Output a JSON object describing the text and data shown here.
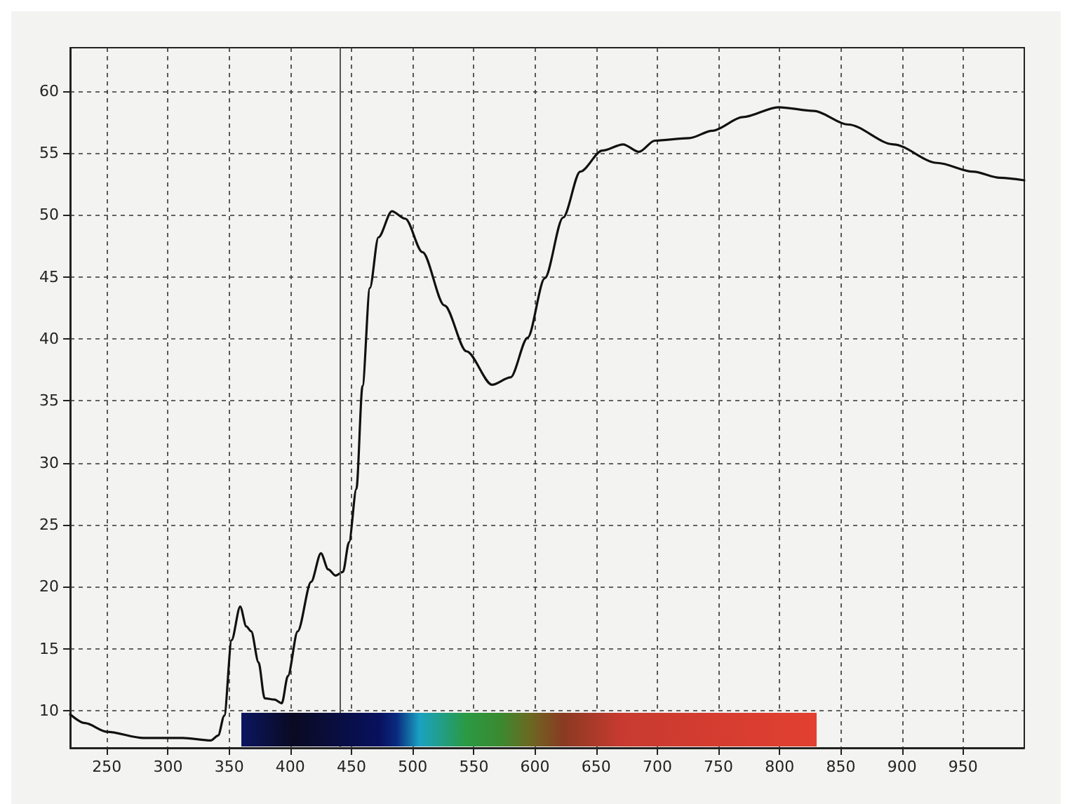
{
  "chart_data": {
    "type": "line",
    "x": [
      220,
      232,
      250,
      280,
      312,
      335,
      341,
      346,
      352,
      359,
      364,
      368,
      374,
      379,
      387,
      393,
      398,
      406,
      417,
      425,
      431,
      437,
      443,
      448,
      454,
      459,
      465,
      472,
      483,
      494,
      508,
      526,
      544,
      565,
      580,
      594,
      608,
      623,
      637,
      655,
      672,
      685,
      698,
      726,
      745,
      770,
      799,
      828,
      856,
      893,
      929,
      958,
      980,
      1000
    ],
    "series": [
      {
        "color": "#111111",
        "values": [
          9.7,
          9.0,
          8.3,
          7.8,
          7.8,
          7.6,
          8.0,
          9.6,
          15.7,
          18.4,
          16.8,
          16.4,
          13.9,
          11.0,
          10.9,
          10.6,
          12.8,
          16.4,
          20.4,
          22.7,
          21.4,
          20.9,
          21.2,
          23.6,
          27.9,
          36.2,
          44.1,
          48.2,
          50.3,
          49.7,
          47.0,
          42.7,
          39.0,
          36.3,
          36.9,
          40.1,
          44.9,
          49.8,
          53.5,
          55.2,
          55.7,
          55.1,
          56.0,
          56.2,
          56.8,
          57.9,
          58.7,
          58.4,
          57.3,
          55.7,
          54.2,
          53.5,
          53.0,
          52.8
        ]
      }
    ],
    "xlim": [
      220,
      1000
    ],
    "xticks": [
      250,
      300,
      350,
      400,
      450,
      500,
      550,
      600,
      650,
      700,
      750,
      800,
      850,
      900,
      950
    ],
    "ylim": [
      7,
      63.5
    ],
    "yticks": [
      10,
      15,
      20,
      25,
      30,
      35,
      40,
      45,
      50,
      55,
      60
    ],
    "ref_lines": [
      {
        "axis": "x",
        "value": 440,
        "color": "#555555"
      }
    ],
    "grid": true,
    "line_style": "solid",
    "marker": "none"
  }
}
